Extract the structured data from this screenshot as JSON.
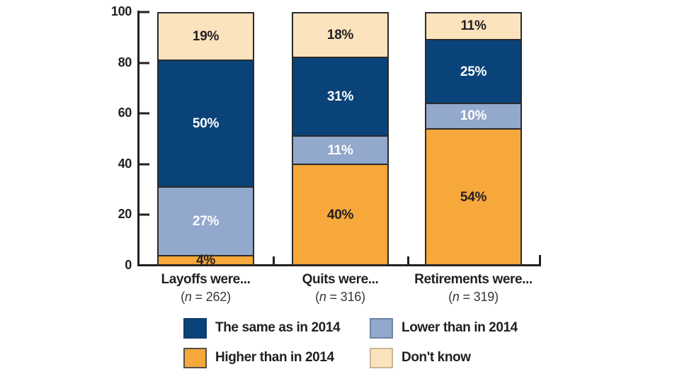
{
  "chart_data": {
    "type": "bar",
    "variant": "stacked-vertical",
    "value_suffix": "%",
    "categories": [
      {
        "label": "Layoffs were...",
        "n_label": "(n = 262)"
      },
      {
        "label": "Quits were...",
        "n_label": "(n = 316)"
      },
      {
        "label": "Retirements were...",
        "n_label": "(n = 319)"
      }
    ],
    "series": [
      {
        "name": "The same as in 2014",
        "color": "#0a4379",
        "label_color": "#ffffff",
        "values": [
          50,
          31,
          25
        ]
      },
      {
        "name": "Higher than in 2014",
        "color": "#f6a83b",
        "label_color": "#231f20",
        "values": [
          4,
          40,
          54
        ]
      },
      {
        "name": "Lower than in 2014",
        "color": "#92a8cc",
        "label_color": "#ffffff",
        "values": [
          27,
          11,
          10
        ]
      },
      {
        "name": "Don't know",
        "color": "#fbe3bd",
        "label_color": "#231f20",
        "values": [
          19,
          18,
          11
        ]
      }
    ],
    "stack_order_top_to_bottom": [
      "Don't know",
      "The same as in 2014",
      "Lower than in 2014",
      "Higher than in 2014"
    ],
    "y_axis": {
      "min": 0,
      "max": 100,
      "ticks": [
        0,
        20,
        40,
        60,
        80,
        100
      ]
    },
    "grid": false,
    "legend_position": "bottom",
    "legend": [
      {
        "label": "The same as in 2014",
        "color": "#0a4379",
        "border": "#123d6b"
      },
      {
        "label": "Lower than in 2014",
        "color": "#92a8cc",
        "border": "#7082a8"
      },
      {
        "label": "Higher than in 2014",
        "color": "#f6a83b",
        "border": "#55504a"
      },
      {
        "label": "Don't know",
        "color": "#fbe3bd",
        "border": "#cdb593"
      }
    ]
  },
  "colors": {
    "ink": "#231f20",
    "bar_border": "#2b2b2b",
    "background": "#ffffff"
  }
}
